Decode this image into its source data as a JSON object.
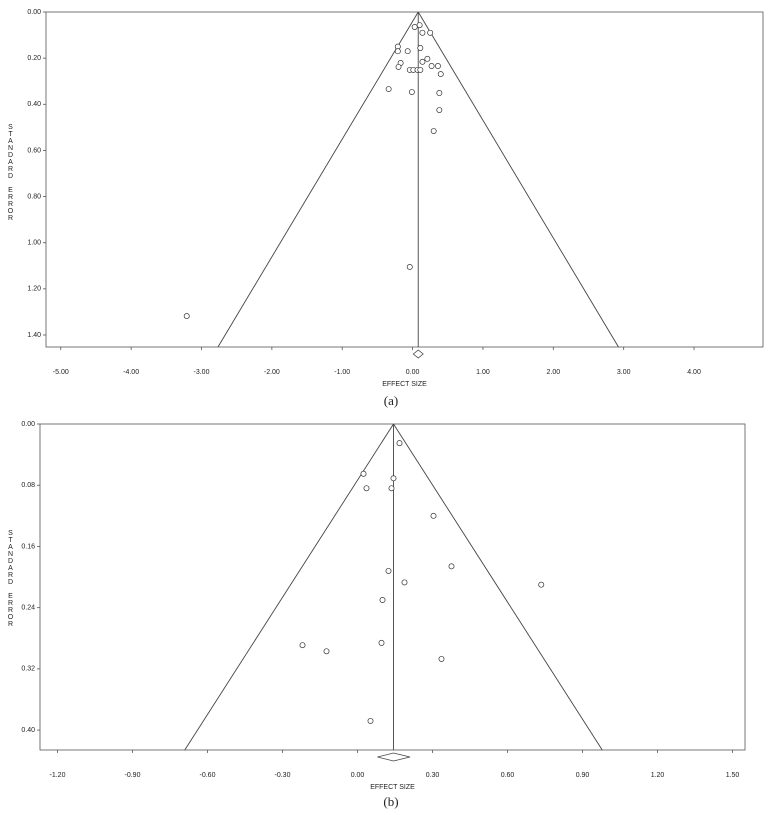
{
  "chart_data": [
    {
      "type": "scatter",
      "caption": "(a)",
      "x_label": "EFFECT SIZE",
      "y_label": "STANDARD ERROR",
      "x": [
        0.1,
        0.03,
        0.25,
        0.14,
        -0.21,
        -0.21,
        -0.07,
        0.11,
        0.21,
        0.14,
        -0.17,
        -0.2,
        0.27,
        0.36,
        -0.04,
        0.01,
        0.07,
        0.11,
        0.4,
        -0.34,
        -0.01,
        0.38,
        0.38,
        0.3,
        -0.04,
        -3.21
      ],
      "y": [
        0.057,
        0.065,
        0.09,
        0.09,
        0.15,
        0.17,
        0.17,
        0.156,
        0.203,
        0.216,
        0.221,
        0.238,
        0.234,
        0.234,
        0.251,
        0.251,
        0.251,
        0.251,
        0.269,
        0.334,
        0.347,
        0.351,
        0.425,
        0.516,
        1.105,
        1.318
      ],
      "summary_effect": 0.08,
      "summary_ci_low": 0.01,
      "summary_ci_high": 0.15,
      "xlim": [
        -5.21,
        4.98
      ],
      "ylim": [
        0,
        1.452
      ],
      "xticks": [
        {
          "value": -5,
          "label": "-5.00"
        },
        {
          "value": -4,
          "label": "-4.00"
        },
        {
          "value": -3,
          "label": "-3.00"
        },
        {
          "value": -2,
          "label": "-2.00"
        },
        {
          "value": -1,
          "label": "-1.00"
        },
        {
          "value": 0,
          "label": "0.00"
        },
        {
          "value": 1,
          "label": "1.00"
        },
        {
          "value": 2,
          "label": "2.00"
        },
        {
          "value": 3,
          "label": "3.00"
        },
        {
          "value": 4,
          "label": "4.00"
        }
      ],
      "yticks": [
        {
          "value": 0,
          "label": "0.00"
        },
        {
          "value": 0.2,
          "label": "0.20"
        },
        {
          "value": 0.4,
          "label": "0.40"
        },
        {
          "value": 0.6,
          "label": "0.60"
        },
        {
          "value": 0.8,
          "label": "0.80"
        },
        {
          "value": 1.0,
          "label": "1.00"
        },
        {
          "value": 1.2,
          "label": "1.20"
        },
        {
          "value": 1.4,
          "label": "1.40"
        }
      ]
    },
    {
      "type": "scatter",
      "caption": "(b)",
      "x_label": "EFFECT SIZE",
      "y_label": "STANDARD ERROR",
      "x": [
        0.168,
        0.024,
        0.144,
        0.036,
        0.136,
        0.304,
        0.376,
        0.124,
        0.188,
        0.735,
        0.1,
        0.096,
        -0.22,
        -0.124,
        0.336,
        0.052
      ],
      "y": [
        0.025,
        0.065,
        0.071,
        0.084,
        0.084,
        0.12,
        0.186,
        0.192,
        0.207,
        0.21,
        0.23,
        0.286,
        0.289,
        0.297,
        0.307,
        0.388
      ],
      "summary_effect": 0.144,
      "summary_ci_low": 0.08,
      "summary_ci_high": 0.21,
      "xlim": [
        -1.27,
        1.55
      ],
      "ylim": [
        0,
        0.426
      ],
      "xticks": [
        {
          "value": -1.2,
          "label": "-1.20"
        },
        {
          "value": -0.9,
          "label": "-0.90"
        },
        {
          "value": -0.6,
          "label": "-0.60"
        },
        {
          "value": -0.3,
          "label": "-0.30"
        },
        {
          "value": 0,
          "label": "0.00"
        },
        {
          "value": 0.3,
          "label": "0.30"
        },
        {
          "value": 0.6,
          "label": "0.60"
        },
        {
          "value": 0.9,
          "label": "0.90"
        },
        {
          "value": 1.2,
          "label": "1.20"
        },
        {
          "value": 1.5,
          "label": "1.50"
        }
      ],
      "yticks": [
        {
          "value": 0,
          "label": "0.00"
        },
        {
          "value": 0.08,
          "label": "0.08"
        },
        {
          "value": 0.16,
          "label": "0.16"
        },
        {
          "value": 0.24,
          "label": "0.24"
        },
        {
          "value": 0.32,
          "label": "0.32"
        },
        {
          "value": 0.4,
          "label": "0.40"
        }
      ]
    }
  ]
}
